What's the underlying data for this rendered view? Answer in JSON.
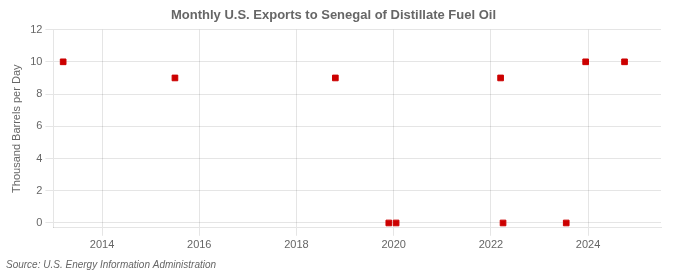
{
  "chart_data": {
    "type": "scatter",
    "title": "Monthly U.S. Exports to Senegal of Distillate Fuel Oil",
    "ylabel": "Thousand Barrels per Day",
    "source": "Source: U.S. Energy Information Administration",
    "x": [
      2013.2,
      2015.5,
      2018.8,
      2019.9,
      2020.05,
      2022.2,
      2022.25,
      2023.55,
      2023.95,
      2024.75
    ],
    "values": [
      10,
      9,
      9,
      0,
      0,
      9,
      0,
      0,
      10,
      10
    ],
    "color": "#cc0000",
    "marker": "square",
    "xlim": [
      2013.0,
      2025.5
    ],
    "ylim": [
      -0.3,
      12
    ],
    "xticks": [
      2014,
      2016,
      2018,
      2020,
      2022,
      2024
    ],
    "yticks": [
      0,
      2,
      4,
      6,
      8,
      10,
      12
    ],
    "grid": true
  }
}
